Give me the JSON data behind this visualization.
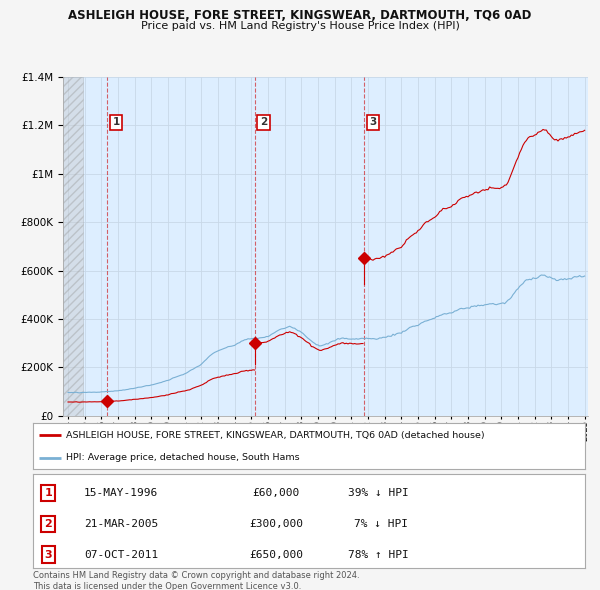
{
  "title": "ASHLEIGH HOUSE, FORE STREET, KINGSWEAR, DARTMOUTH, TQ6 0AD",
  "subtitle": "Price paid vs. HM Land Registry's House Price Index (HPI)",
  "ylim": [
    0,
    1400000
  ],
  "yticks": [
    0,
    200000,
    400000,
    600000,
    800000,
    1000000,
    1200000,
    1400000
  ],
  "x_start_year": 1994,
  "x_end_year": 2025,
  "sales": [
    {
      "num": 1,
      "date": "15-MAY-1996",
      "year": 1996.37,
      "price": 60000,
      "hpi_pct": "39% ↓ HPI"
    },
    {
      "num": 2,
      "date": "21-MAR-2005",
      "year": 2005.22,
      "price": 300000,
      "hpi_pct": "7% ↓ HPI"
    },
    {
      "num": 3,
      "date": "07-OCT-2011",
      "year": 2011.77,
      "price": 650000,
      "hpi_pct": "78% ↑ HPI"
    }
  ],
  "red_line_color": "#cc0000",
  "blue_line_color": "#7ab0d4",
  "grid_color": "#c8d8e8",
  "plot_bg_color": "#ddeeff",
  "fig_bg_color": "#f5f5f5",
  "legend_label_red": "ASHLEIGH HOUSE, FORE STREET, KINGSWEAR, DARTMOUTH, TQ6 0AD (detached house)",
  "legend_label_blue": "HPI: Average price, detached house, South Hams",
  "footer": "Contains HM Land Registry data © Crown copyright and database right 2024.\nThis data is licensed under the Open Government Licence v3.0.",
  "hpi_monthly": {
    "1994.0": 97000,
    "1994.1": 96500,
    "1994.2": 96800,
    "1994.3": 96200,
    "1994.4": 97500,
    "1994.5": 97800,
    "1994.6": 96000,
    "1994.7": 95500,
    "1994.8": 96500,
    "1994.9": 97000,
    "1995.0": 97500,
    "1995.1": 97000,
    "1995.2": 97800,
    "1995.3": 98200,
    "1995.4": 97500,
    "1995.5": 98500,
    "1995.6": 98000,
    "1995.7": 97500,
    "1995.8": 98000,
    "1995.9": 98500,
    "1996.0": 99000,
    "1996.1": 99500,
    "1996.2": 100000,
    "1996.3": 100500,
    "1996.4": 101000,
    "1996.5": 101500,
    "1996.6": 102000,
    "1996.7": 102500,
    "1996.8": 103000,
    "1996.9": 103500,
    "1997.0": 104000,
    "1997.1": 105000,
    "1997.2": 106000,
    "1997.3": 107000,
    "1997.4": 108000,
    "1997.5": 109000,
    "1997.6": 110000,
    "1997.7": 111000,
    "1997.8": 112000,
    "1997.9": 113000,
    "1998.0": 114000,
    "1998.1": 116000,
    "1998.2": 118000,
    "1998.3": 119000,
    "1998.4": 120000,
    "1998.5": 122000,
    "1998.6": 123000,
    "1998.7": 124000,
    "1998.8": 125000,
    "1998.9": 126000,
    "1999.0": 127000,
    "1999.1": 129000,
    "1999.2": 131000,
    "1999.3": 133000,
    "1999.4": 135000,
    "1999.5": 137000,
    "1999.6": 139000,
    "1999.7": 141000,
    "1999.8": 143000,
    "1999.9": 145000,
    "2000.0": 147000,
    "2000.1": 150000,
    "2000.2": 153000,
    "2000.3": 156000,
    "2000.4": 159000,
    "2000.5": 162000,
    "2000.6": 165000,
    "2000.7": 167000,
    "2000.8": 169000,
    "2000.9": 171000,
    "2001.0": 173000,
    "2001.1": 177000,
    "2001.2": 181000,
    "2001.3": 185000,
    "2001.4": 189000,
    "2001.5": 193000,
    "2001.6": 197000,
    "2001.7": 201000,
    "2001.8": 205000,
    "2001.9": 209000,
    "2002.0": 213000,
    "2002.1": 220000,
    "2002.2": 227000,
    "2002.3": 234000,
    "2002.4": 241000,
    "2002.5": 248000,
    "2002.6": 253000,
    "2002.7": 257000,
    "2002.8": 261000,
    "2002.9": 265000,
    "2003.0": 268000,
    "2003.1": 271000,
    "2003.2": 274000,
    "2003.3": 277000,
    "2003.4": 280000,
    "2003.5": 282000,
    "2003.6": 284000,
    "2003.7": 286000,
    "2003.8": 288000,
    "2003.9": 290000,
    "2004.0": 292000,
    "2004.1": 296000,
    "2004.2": 300000,
    "2004.3": 304000,
    "2004.4": 308000,
    "2004.5": 311000,
    "2004.6": 313000,
    "2004.7": 315000,
    "2004.8": 317000,
    "2004.9": 318000,
    "2005.0": 319000,
    "2005.1": 319500,
    "2005.2": 320000,
    "2005.3": 320500,
    "2005.4": 321000,
    "2005.5": 322000,
    "2005.6": 323000,
    "2005.7": 324000,
    "2005.8": 325000,
    "2005.9": 326000,
    "2006.0": 328000,
    "2006.1": 332000,
    "2006.2": 336000,
    "2006.3": 340000,
    "2006.4": 344000,
    "2006.5": 348000,
    "2006.6": 352000,
    "2006.7": 356000,
    "2006.8": 358000,
    "2006.9": 360000,
    "2007.0": 362000,
    "2007.1": 365000,
    "2007.2": 368000,
    "2007.3": 370000,
    "2007.4": 368000,
    "2007.5": 365000,
    "2007.6": 362000,
    "2007.7": 358000,
    "2007.8": 354000,
    "2007.9": 350000,
    "2008.0": 346000,
    "2008.1": 340000,
    "2008.2": 334000,
    "2008.3": 328000,
    "2008.4": 322000,
    "2008.5": 316000,
    "2008.6": 310000,
    "2008.7": 305000,
    "2008.8": 300000,
    "2008.9": 296000,
    "2009.0": 293000,
    "2009.1": 291000,
    "2009.2": 290000,
    "2009.3": 291000,
    "2009.4": 293000,
    "2009.5": 296000,
    "2009.6": 299000,
    "2009.7": 302000,
    "2009.8": 305000,
    "2009.9": 308000,
    "2010.0": 311000,
    "2010.1": 314000,
    "2010.2": 317000,
    "2010.3": 319000,
    "2010.4": 320000,
    "2010.5": 320500,
    "2010.6": 320000,
    "2010.7": 319500,
    "2010.8": 319000,
    "2010.9": 318500,
    "2011.0": 318000,
    "2011.1": 317500,
    "2011.2": 317000,
    "2011.3": 317500,
    "2011.4": 318000,
    "2011.5": 318500,
    "2011.6": 319000,
    "2011.7": 319500,
    "2011.8": 320000,
    "2011.9": 320500,
    "2012.0": 320000,
    "2012.1": 319000,
    "2012.2": 318000,
    "2012.3": 317500,
    "2012.4": 318000,
    "2012.5": 319000,
    "2012.6": 320000,
    "2012.7": 321000,
    "2012.8": 322000,
    "2012.9": 323000,
    "2013.0": 324000,
    "2013.1": 326000,
    "2013.2": 328000,
    "2013.3": 330000,
    "2013.4": 332000,
    "2013.5": 334000,
    "2013.6": 336000,
    "2013.7": 338000,
    "2013.8": 340000,
    "2013.9": 342000,
    "2014.0": 344000,
    "2014.1": 348000,
    "2014.2": 352000,
    "2014.3": 356000,
    "2014.4": 360000,
    "2014.5": 364000,
    "2014.6": 367000,
    "2014.7": 369000,
    "2014.8": 371000,
    "2014.9": 373000,
    "2015.0": 375000,
    "2015.1": 379000,
    "2015.2": 383000,
    "2015.3": 387000,
    "2015.4": 390000,
    "2015.5": 393000,
    "2015.6": 395000,
    "2015.7": 397000,
    "2015.8": 399000,
    "2015.9": 401000,
    "2016.0": 403000,
    "2016.1": 407000,
    "2016.2": 411000,
    "2016.3": 415000,
    "2016.4": 418000,
    "2016.5": 420000,
    "2016.6": 421000,
    "2016.7": 422000,
    "2016.8": 423000,
    "2016.9": 424000,
    "2017.0": 425000,
    "2017.1": 428000,
    "2017.2": 431000,
    "2017.3": 434000,
    "2017.4": 437000,
    "2017.5": 440000,
    "2017.6": 442000,
    "2017.7": 443000,
    "2017.8": 444000,
    "2017.9": 445000,
    "2018.0": 446000,
    "2018.1": 448000,
    "2018.2": 450000,
    "2018.3": 452000,
    "2018.4": 453000,
    "2018.5": 454000,
    "2018.6": 455000,
    "2018.7": 456000,
    "2018.8": 457000,
    "2018.9": 458000,
    "2019.0": 459000,
    "2019.1": 460000,
    "2019.2": 461000,
    "2019.3": 462000,
    "2019.4": 462500,
    "2019.5": 462000,
    "2019.6": 461500,
    "2019.7": 461000,
    "2019.8": 461500,
    "2019.9": 462000,
    "2020.0": 463000,
    "2020.1": 465000,
    "2020.2": 467000,
    "2020.3": 470000,
    "2020.4": 475000,
    "2020.5": 482000,
    "2020.6": 490000,
    "2020.7": 500000,
    "2020.8": 510000,
    "2020.9": 518000,
    "2021.0": 525000,
    "2021.1": 532000,
    "2021.2": 540000,
    "2021.3": 548000,
    "2021.4": 555000,
    "2021.5": 560000,
    "2021.6": 563000,
    "2021.7": 565000,
    "2021.8": 567000,
    "2021.9": 568000,
    "2022.0": 569000,
    "2022.1": 572000,
    "2022.2": 575000,
    "2022.3": 578000,
    "2022.4": 580000,
    "2022.5": 581000,
    "2022.6": 580000,
    "2022.7": 578000,
    "2022.8": 575000,
    "2022.9": 572000,
    "2023.0": 569000,
    "2023.1": 566000,
    "2023.2": 563000,
    "2023.3": 561000,
    "2023.4": 560000,
    "2023.5": 560500,
    "2023.6": 561000,
    "2023.7": 562000,
    "2023.8": 563000,
    "2023.9": 564000,
    "2024.0": 565000,
    "2024.1": 567000,
    "2024.2": 569000,
    "2024.3": 571000,
    "2024.4": 573000,
    "2024.5": 574000,
    "2024.6": 575000,
    "2024.7": 576000,
    "2024.8": 577000,
    "2024.9": 578000,
    "2025.0": 579000
  }
}
